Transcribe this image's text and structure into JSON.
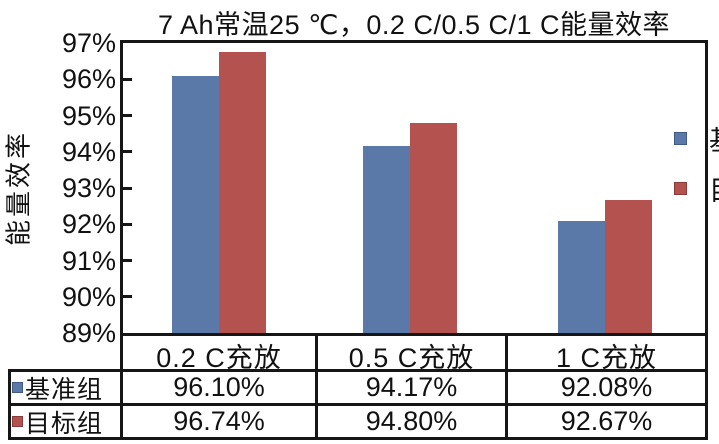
{
  "chart_data": {
    "type": "bar",
    "title": "7 Ah常温25 ℃，0.2 C/0.5 C/1 C能量效率",
    "ylabel": "能量效率",
    "categories": [
      "0.2 C充放",
      "0.5 C充放",
      "1 C充放"
    ],
    "series": [
      {
        "name": "基准组",
        "color": "#5B79A8",
        "marker_border_color": "#3F5A85",
        "values": [
          96.1,
          94.17,
          92.08
        ],
        "display_values": [
          "96.10%",
          "94.17%",
          "92.08%"
        ]
      },
      {
        "name": "目标组",
        "color": "#B3524F",
        "marker_border_color": "#8A3B39",
        "values": [
          96.74,
          94.8,
          92.67
        ],
        "display_values": [
          "96.74%",
          "94.80%",
          "92.67%"
        ]
      }
    ],
    "ylim": [
      89,
      97
    ],
    "ytick_step": 1,
    "ytick_labels": [
      "97%",
      "96%",
      "95%",
      "94%",
      "93%",
      "92%",
      "91%",
      "90%",
      "89%"
    ],
    "legend_position": "inside-right",
    "grid": false,
    "data_table_shown": true,
    "axis_color": "#161616"
  }
}
